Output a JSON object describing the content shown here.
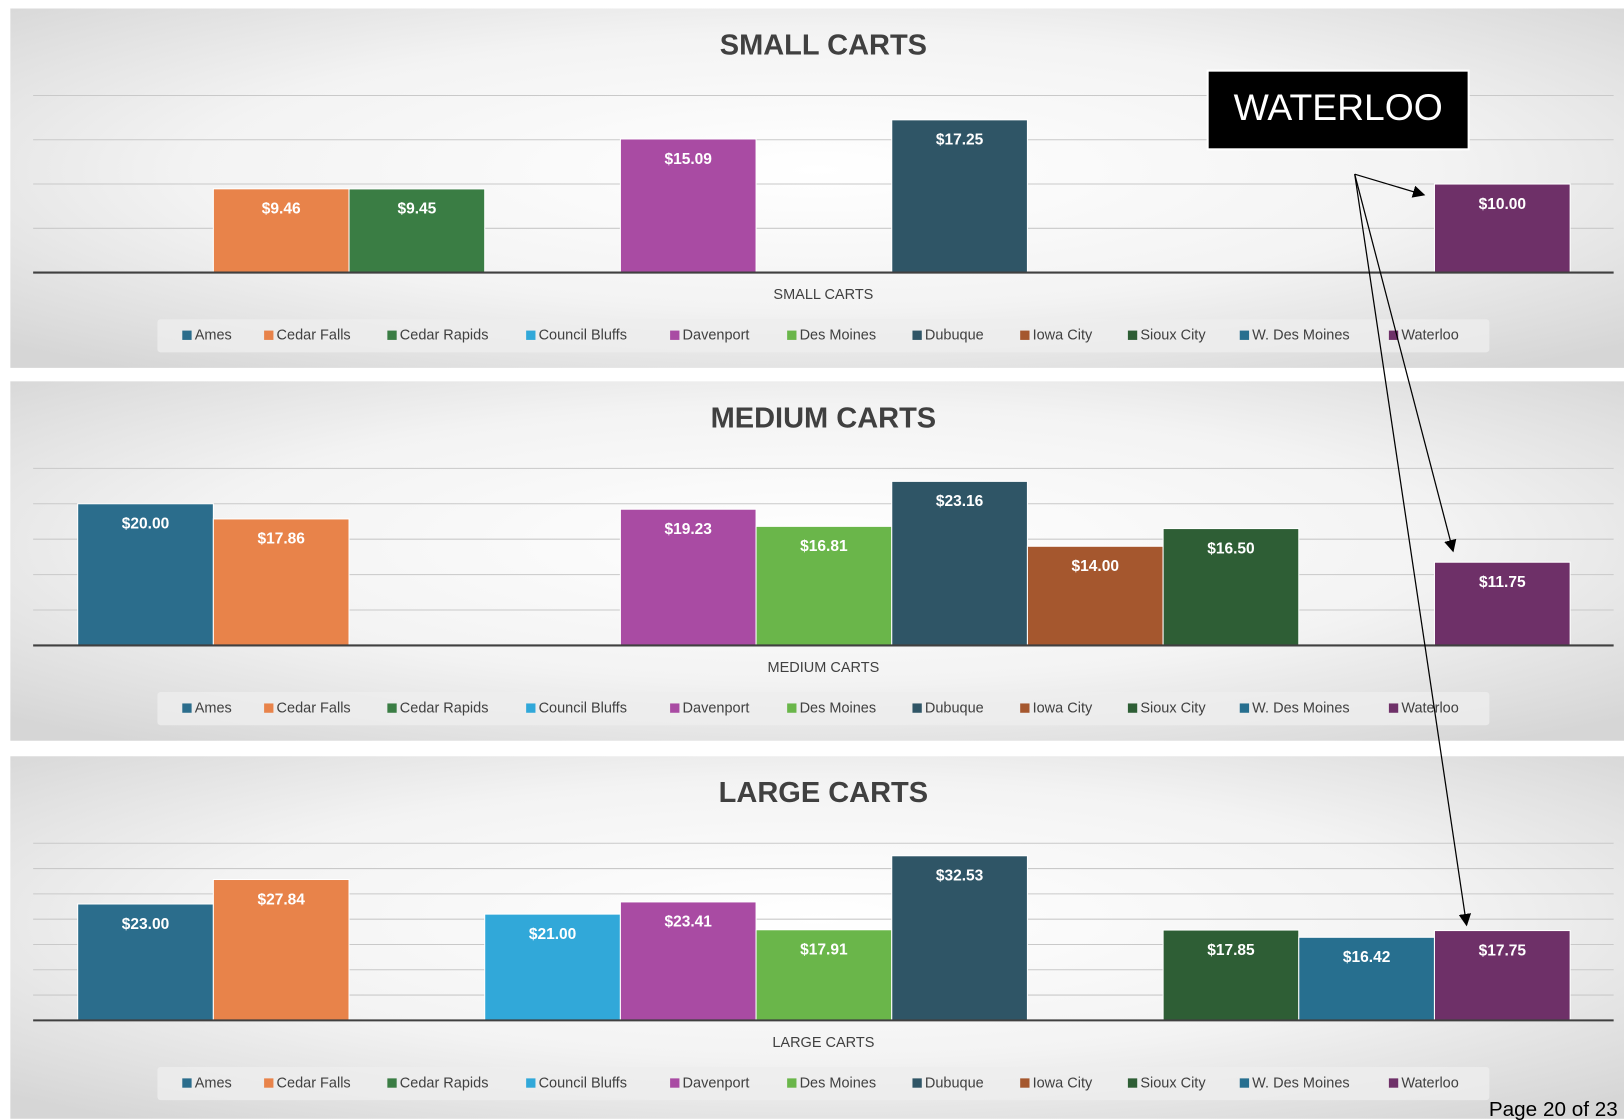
{
  "chart_data": [
    {
      "type": "bar",
      "title": "SMALL CARTS",
      "categories": [
        "SMALL CARTS"
      ],
      "ylim": [
        0,
        20
      ],
      "yticks": [
        0,
        5,
        10,
        15,
        20
      ],
      "grid": true,
      "series": [
        {
          "name": "Ames",
          "color": "#2b6d8c",
          "values": [
            null
          ],
          "value_labels": [
            null
          ]
        },
        {
          "name": "Cedar Falls",
          "color": "#e8834a",
          "values": [
            9.46
          ],
          "value_labels": [
            "$9.46"
          ]
        },
        {
          "name": "Cedar Rapids",
          "color": "#3a7d44",
          "values": [
            9.45
          ],
          "value_labels": [
            "$9.45"
          ]
        },
        {
          "name": "Council Bluffs",
          "color": "#31a8d9",
          "values": [
            null
          ],
          "value_labels": [
            null
          ]
        },
        {
          "name": "Davenport",
          "color": "#a94ba3",
          "values": [
            15.09
          ],
          "value_labels": [
            "$15.09"
          ]
        },
        {
          "name": "Des Moines",
          "color": "#6ab64a",
          "values": [
            null
          ],
          "value_labels": [
            null
          ]
        },
        {
          "name": "Dubuque",
          "color": "#2f5566",
          "values": [
            17.25
          ],
          "value_labels": [
            "$17.25"
          ]
        },
        {
          "name": "Iowa City",
          "color": "#a5572e",
          "values": [
            null
          ],
          "value_labels": [
            null
          ]
        },
        {
          "name": "Sioux City",
          "color": "#2e5e35",
          "values": [
            null
          ],
          "value_labels": [
            null
          ]
        },
        {
          "name": "W. Des Moines",
          "color": "#276f8f",
          "values": [
            null
          ],
          "value_labels": [
            null
          ]
        },
        {
          "name": "Waterloo",
          "color": "#6e3068",
          "values": [
            10.0
          ],
          "value_labels": [
            "$10.00"
          ]
        }
      ]
    },
    {
      "type": "bar",
      "title": "MEDIUM CARTS",
      "categories": [
        "MEDIUM CARTS"
      ],
      "ylim": [
        0,
        25
      ],
      "yticks": [
        0,
        5,
        10,
        15,
        20,
        25
      ],
      "grid": true,
      "series": [
        {
          "name": "Ames",
          "color": "#2b6d8c",
          "values": [
            20.0
          ],
          "value_labels": [
            "$20.00"
          ]
        },
        {
          "name": "Cedar Falls",
          "color": "#e8834a",
          "values": [
            17.86
          ],
          "value_labels": [
            "$17.86"
          ]
        },
        {
          "name": "Cedar Rapids",
          "color": "#3a7d44",
          "values": [
            null
          ],
          "value_labels": [
            null
          ]
        },
        {
          "name": "Council Bluffs",
          "color": "#31a8d9",
          "values": [
            null
          ],
          "value_labels": [
            null
          ]
        },
        {
          "name": "Davenport",
          "color": "#a94ba3",
          "values": [
            19.23
          ],
          "value_labels": [
            "$19.23"
          ]
        },
        {
          "name": "Des Moines",
          "color": "#6ab64a",
          "values": [
            16.81
          ],
          "value_labels": [
            "$16.81"
          ]
        },
        {
          "name": "Dubuque",
          "color": "#2f5566",
          "values": [
            23.16
          ],
          "value_labels": [
            "$23.16"
          ]
        },
        {
          "name": "Iowa City",
          "color": "#a5572e",
          "values": [
            14.0
          ],
          "value_labels": [
            "$14.00"
          ]
        },
        {
          "name": "Sioux City",
          "color": "#2e5e35",
          "values": [
            16.5
          ],
          "value_labels": [
            "$16.50"
          ]
        },
        {
          "name": "W. Des Moines",
          "color": "#276f8f",
          "values": [
            null
          ],
          "value_labels": [
            null
          ]
        },
        {
          "name": "Waterloo",
          "color": "#6e3068",
          "values": [
            11.75
          ],
          "value_labels": [
            "$11.75"
          ]
        }
      ]
    },
    {
      "type": "bar",
      "title": "LARGE CARTS",
      "categories": [
        "LARGE CARTS"
      ],
      "ylim": [
        0,
        35
      ],
      "yticks": [
        0,
        5,
        10,
        15,
        20,
        25,
        30,
        35
      ],
      "grid": true,
      "series": [
        {
          "name": "Ames",
          "color": "#2b6d8c",
          "values": [
            23.0
          ],
          "value_labels": [
            "$23.00"
          ]
        },
        {
          "name": "Cedar Falls",
          "color": "#e8834a",
          "values": [
            27.84
          ],
          "value_labels": [
            "$27.84"
          ]
        },
        {
          "name": "Cedar Rapids",
          "color": "#3a7d44",
          "values": [
            null
          ],
          "value_labels": [
            null
          ]
        },
        {
          "name": "Council Bluffs",
          "color": "#31a8d9",
          "values": [
            21.0
          ],
          "value_labels": [
            "$21.00"
          ]
        },
        {
          "name": "Davenport",
          "color": "#a94ba3",
          "values": [
            23.41
          ],
          "value_labels": [
            "$23.41"
          ]
        },
        {
          "name": "Des Moines",
          "color": "#6ab64a",
          "values": [
            17.91
          ],
          "value_labels": [
            "$17.91"
          ]
        },
        {
          "name": "Dubuque",
          "color": "#2f5566",
          "values": [
            32.53
          ],
          "value_labels": [
            "$32.53"
          ]
        },
        {
          "name": "Iowa City",
          "color": "#a5572e",
          "values": [
            null
          ],
          "value_labels": [
            null
          ]
        },
        {
          "name": "Sioux City",
          "color": "#2e5e35",
          "values": [
            17.85
          ],
          "value_labels": [
            "$17.85"
          ]
        },
        {
          "name": "W. Des Moines",
          "color": "#276f8f",
          "values": [
            16.42
          ],
          "value_labels": [
            "$16.42"
          ]
        },
        {
          "name": "Waterloo",
          "color": "#6e3068",
          "values": [
            17.75
          ],
          "value_labels": [
            "$17.75"
          ]
        }
      ]
    }
  ],
  "annotation": "WATERLOO",
  "footer": "Page 20 of 23"
}
